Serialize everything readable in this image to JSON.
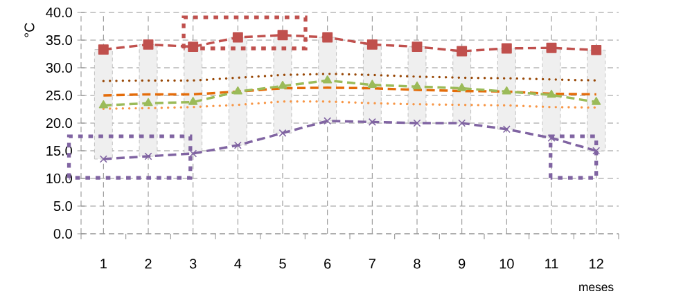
{
  "chart_data": {
    "type": "line",
    "categories": [
      "1",
      "2",
      "3",
      "4",
      "5",
      "6",
      "7",
      "8",
      "9",
      "10",
      "11",
      "12"
    ],
    "xlabel": "meses",
    "ylabel": "°C",
    "ylim": [
      0,
      40
    ],
    "yticks": [
      {
        "value": 0,
        "label": "0.0"
      },
      {
        "value": 5,
        "label": "5.0"
      },
      {
        "value": 10,
        "label": "10.0"
      },
      {
        "value": 15,
        "label": "15.0"
      },
      {
        "value": 20,
        "label": "20.0"
      },
      {
        "value": 25,
        "label": "25.0"
      },
      {
        "value": 30,
        "label": "30.0"
      },
      {
        "value": 35,
        "label": "35.0"
      },
      {
        "value": 40,
        "label": "40.0"
      }
    ],
    "grid": true,
    "series": [
      {
        "type": "bar",
        "color": "#efefef",
        "base": [
          13.5,
          14.0,
          14.5,
          16.0,
          18.2,
          20.4,
          20.2,
          20.0,
          20.0,
          18.9,
          17.3,
          15.0
        ],
        "values": [
          19.8,
          20.2,
          19.3,
          19.5,
          17.7,
          15.1,
          14.0,
          13.8,
          13.0,
          14.6,
          16.3,
          18.2
        ]
      },
      {
        "color": "#984807",
        "marker": "none",
        "line_style": "dotted",
        "values": [
          27.6,
          27.7,
          27.7,
          28.2,
          28.7,
          28.9,
          28.7,
          28.4,
          28.2,
          28.1,
          27.9,
          27.7
        ]
      },
      {
        "color": "#e46c0a",
        "marker": "none",
        "line_style": "dashed",
        "values": [
          25.0,
          25.2,
          25.2,
          25.7,
          26.3,
          26.4,
          26.3,
          26.0,
          25.8,
          25.7,
          25.3,
          25.2
        ]
      },
      {
        "color": "#f79646",
        "marker": "none",
        "line_style": "dotted",
        "values": [
          22.6,
          22.7,
          22.9,
          23.3,
          23.9,
          23.9,
          23.6,
          23.4,
          23.3,
          23.2,
          22.9,
          22.8
        ]
      },
      {
        "color": "#9bbb59",
        "marker": "triangle",
        "line_style": "dashed",
        "values": [
          23.2,
          23.6,
          23.8,
          25.7,
          26.7,
          27.7,
          26.9,
          26.6,
          26.3,
          25.7,
          25.1,
          23.8
        ]
      },
      {
        "color": "#c0504d",
        "marker": "square",
        "line_style": "dashed",
        "values": [
          33.3,
          34.2,
          33.8,
          35.5,
          35.9,
          35.5,
          34.2,
          33.8,
          33.0,
          33.5,
          33.6,
          33.2
        ]
      },
      {
        "color": "#8064a2",
        "marker": "cross",
        "line_style": "dashed",
        "values": [
          13.5,
          14.0,
          14.5,
          16.0,
          18.2,
          20.4,
          20.2,
          20.0,
          20.0,
          18.9,
          17.3,
          15.0
        ]
      }
    ]
  }
}
